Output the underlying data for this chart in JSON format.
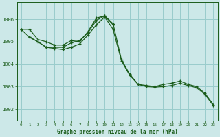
{
  "title": "",
  "xlabel": "Graphe pression niveau de la mer (hPa)",
  "xlim": [
    -0.5,
    23.5
  ],
  "ylim": [
    1001.5,
    1006.75
  ],
  "yticks": [
    1002,
    1003,
    1004,
    1005,
    1006
  ],
  "xticks": [
    0,
    1,
    2,
    3,
    4,
    5,
    6,
    7,
    8,
    9,
    10,
    11,
    12,
    13,
    14,
    15,
    16,
    17,
    18,
    19,
    20,
    21,
    22,
    23
  ],
  "bg_color": "#cce8e8",
  "grid_color": "#99cccc",
  "line_color": "#1a5c1a",
  "line1": {
    "x": [
      0,
      1,
      2,
      3,
      4,
      5,
      6,
      7,
      8,
      9,
      10,
      11,
      12,
      13,
      14,
      15,
      16,
      17,
      18,
      19,
      20,
      21,
      22,
      23
    ],
    "y": [
      1005.55,
      1005.55,
      1005.1,
      1005.0,
      1004.85,
      1004.85,
      1005.05,
      1005.0,
      1005.45,
      1006.05,
      1006.15,
      1005.8,
      1004.2,
      1003.55,
      1003.1,
      1003.05,
      1003.0,
      1003.1,
      1003.15,
      1003.25,
      1003.1,
      1003.0,
      1002.7,
      1002.2
    ]
  },
  "line2": {
    "x": [
      0,
      1,
      2,
      3,
      4,
      5,
      6,
      7,
      8,
      9,
      10,
      11
    ],
    "y": [
      1005.55,
      1005.2,
      1005.0,
      1004.75,
      1004.75,
      1004.75,
      1004.95,
      1005.05,
      1005.4,
      1005.95,
      1006.15,
      1005.75
    ]
  },
  "line3": {
    "x": [
      1,
      2,
      3,
      4,
      5,
      6,
      7,
      8,
      9,
      10,
      11,
      12,
      13,
      14,
      15,
      16,
      17,
      18,
      19,
      20,
      21,
      22,
      23
    ],
    "y": [
      1005.2,
      1005.0,
      1004.75,
      1004.7,
      1004.65,
      1004.75,
      1004.9,
      1005.3,
      1005.75,
      1006.1,
      1005.55,
      1004.15,
      1003.5,
      1003.1,
      1003.0,
      1002.98,
      1003.0,
      1003.05,
      1003.15,
      1003.05,
      1002.95,
      1002.65,
      1002.15
    ]
  }
}
